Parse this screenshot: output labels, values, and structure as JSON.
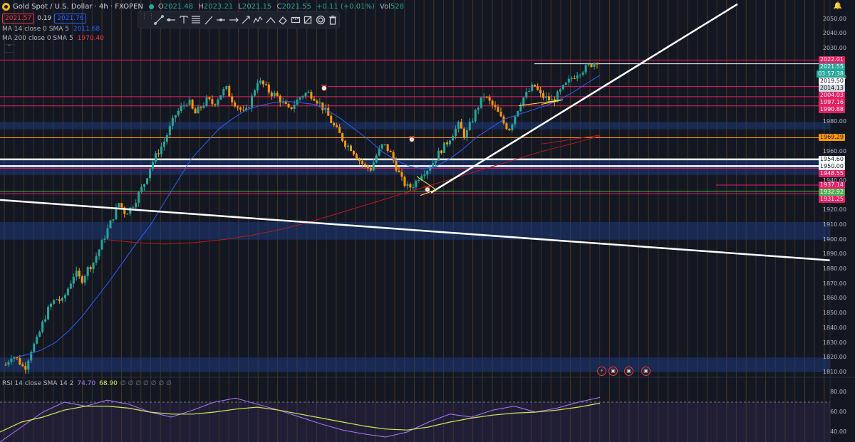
{
  "header": {
    "symbol_title": "Gold Spot / U.S. Dollar · 4h · FXOPEN",
    "ohlc": {
      "open_label": "O",
      "open": "2021.48",
      "high_label": "H",
      "high": "2023.21",
      "low_label": "L",
      "low": "2021.15",
      "close_label": "C",
      "close": "2021.55",
      "change": "+0.11 (+0.01%)",
      "vol_label": "Vol",
      "vol": "528"
    },
    "bid": "2021.57",
    "spread": "0.19",
    "ask": "2021.76"
  },
  "indicators": {
    "ma14": {
      "label": "MA 14 close 0 SMA 5",
      "value": "2011.68",
      "color": "#2962ff"
    },
    "ma200": {
      "label": "MA 200 close 0 SMA 5",
      "value": "1970.40",
      "color": "#f23645"
    },
    "rsi": {
      "label": "RSI 14 close SMA 14 2",
      "value1": "74.70",
      "value2": "68.90",
      "empty_values": "∅ ∅ ∅ ∅ ∅ ∅ ∅",
      "rsi_color": "#b278ff",
      "ma_color": "#d6e85c"
    }
  },
  "toolbar": {
    "tools": [
      "trend-line-icon",
      "horizontal-ray-icon",
      "text-icon",
      "fib-retracement-icon",
      "brush-icon",
      "horizontal-line-icon",
      "arrow-icon",
      "price-range-icon",
      "path-icon",
      "projection-icon",
      "eraser-icon",
      "measure-icon",
      "hide-drawings-icon",
      "settings-icon",
      "delete-icon"
    ]
  },
  "price_axis": {
    "ticks": [
      "2050.00",
      "2040.00",
      "2030.00",
      "2010.00",
      "1980.00",
      "1960.00",
      "1940.00",
      "1920.00",
      "1910.00",
      "1900.00",
      "1890.00",
      "1880.00",
      "1870.00",
      "1860.00",
      "1850.00",
      "1840.00",
      "1830.00",
      "1820.00",
      "1810.00"
    ],
    "tags": [
      {
        "text": "2022.01",
        "bg": "#e91e63",
        "fg": "#ffffff"
      },
      {
        "text": "2021.55",
        "bg": "#26a69a",
        "fg": "#ffffff"
      },
      {
        "text": "03:57:38",
        "bg": "#26a69a",
        "fg": "#ffffff"
      },
      {
        "text": "2019.50",
        "bg": "#ffffff",
        "fg": "#131722"
      },
      {
        "text": "2014.13",
        "bg": "#d1d4dc",
        "fg": "#131722"
      },
      {
        "text": "2004.03",
        "bg": "#e91e63",
        "fg": "#ffffff"
      },
      {
        "text": "1997.16",
        "bg": "#e91e63",
        "fg": "#ffffff"
      },
      {
        "text": "1990.88",
        "bg": "#e91e63",
        "fg": "#ffffff"
      },
      {
        "text": "1969.29",
        "bg": "#ff9800",
        "fg": "#131722"
      },
      {
        "text": "1954.60",
        "bg": "#ffffff",
        "fg": "#131722"
      },
      {
        "text": "1950.00",
        "bg": "#ffffff",
        "fg": "#131722"
      },
      {
        "text": "1948.55",
        "bg": "#e91e63",
        "fg": "#ffffff"
      },
      {
        "text": "1937.14",
        "bg": "#e91e63",
        "fg": "#ffffff"
      },
      {
        "text": "1932.92",
        "bg": "#4caf50",
        "fg": "#ffffff"
      },
      {
        "text": "1931.25",
        "bg": "#e91e63",
        "fg": "#ffffff"
      }
    ]
  },
  "rsi_axis": {
    "ticks": [
      "80.00",
      "60.00",
      "40.00"
    ]
  },
  "chart_data": {
    "type": "candlestick",
    "symbol": "XAUUSD",
    "timeframe": "4h",
    "ylim": [
      1808,
      2058
    ],
    "close_path": [
      1815,
      1822,
      1818,
      1812,
      1825,
      1832,
      1845,
      1855,
      1860,
      1858,
      1868,
      1878,
      1872,
      1880,
      1885,
      1895,
      1905,
      1915,
      1925,
      1918,
      1922,
      1930,
      1938,
      1950,
      1958,
      1965,
      1975,
      1985,
      1990,
      1995,
      1985,
      1990,
      1995,
      1992,
      1998,
      2003,
      1995,
      1990,
      1985,
      1995,
      2008,
      2005,
      2000,
      1998,
      1993,
      1988,
      1993,
      1998,
      2000,
      1997,
      1992,
      1986,
      1978,
      1972,
      1965,
      1962,
      1955,
      1950,
      1948,
      1958,
      1965,
      1960,
      1950,
      1940,
      1935,
      1938,
      1945,
      1948,
      1953,
      1960,
      1965,
      1972,
      1978,
      1970,
      1980,
      1990,
      1998,
      1993,
      1988,
      1980,
      1975,
      1985,
      1995,
      2000,
      2005,
      1998,
      1996,
      1994,
      2000,
      2005,
      2010,
      2014,
      2016,
      2019,
      2021.55
    ],
    "ma14_approx": [
      1820,
      1822,
      1825,
      1830,
      1838,
      1848,
      1860,
      1872,
      1885,
      1898,
      1910,
      1925,
      1940,
      1955,
      1965,
      1975,
      1982,
      1988,
      1991,
      1993,
      1994,
      1993,
      1992,
      1988,
      1982,
      1975,
      1968,
      1960,
      1954,
      1950,
      1948,
      1950,
      1955,
      1962,
      1970,
      1976,
      1982,
      1985,
      1988,
      1991,
      1995,
      2000,
      2006,
      2011.68
    ],
    "ma200_approx": [
      1900,
      1898,
      1897,
      1898,
      1900,
      1903,
      1907,
      1912,
      1918,
      1924,
      1930,
      1936,
      1942,
      1948,
      1954,
      1960,
      1965,
      1970.4
    ],
    "rsi_approx": [
      30,
      45,
      60,
      70,
      66,
      72,
      68,
      60,
      55,
      62,
      70,
      74,
      68,
      62,
      55,
      48,
      42,
      38,
      35,
      40,
      50,
      58,
      55,
      62,
      66,
      60,
      64,
      70,
      74.7
    ],
    "rsi_sma_approx": [
      40,
      50,
      55,
      62,
      66,
      66,
      64,
      60,
      58,
      58,
      60,
      63,
      65,
      62,
      58,
      54,
      50,
      46,
      43,
      42,
      45,
      50,
      54,
      57,
      59,
      60,
      62,
      65,
      68.9
    ],
    "horizontal_levels": [
      {
        "price": 2022.01,
        "color": "#e91e63"
      },
      {
        "price": 2019.5,
        "color": "#ffffff"
      },
      {
        "price": 2004.03,
        "color": "#e91e63"
      },
      {
        "price": 1997.16,
        "color": "#e91e63"
      },
      {
        "price": 1990.88,
        "color": "#e91e63"
      },
      {
        "price": 1969.29,
        "color": "#ff9800"
      },
      {
        "price": 1954.6,
        "color": "#ffffff"
      },
      {
        "price": 1950.0,
        "color": "#ffffff"
      },
      {
        "price": 1948.55,
        "color": "#e91e63"
      },
      {
        "price": 1937.14,
        "color": "#e91e63"
      },
      {
        "price": 1932.92,
        "color": "#4caf50"
      },
      {
        "price": 1931.25,
        "color": "#e91e63"
      }
    ],
    "zones": [
      {
        "from": 1975,
        "to": 1980
      },
      {
        "from": 1944,
        "to": 1954
      },
      {
        "from": 1900,
        "to": 1912
      },
      {
        "from": 1810,
        "to": 1820
      }
    ]
  }
}
